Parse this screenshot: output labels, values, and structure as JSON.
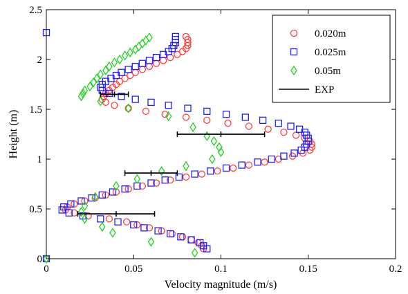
{
  "chart_data": {
    "type": "scatter",
    "title": "",
    "xlabel": "Velocity magnitude (m/s)",
    "ylabel": "Height (m)",
    "xlim": [
      0,
      0.2
    ],
    "ylim": [
      0,
      2.5
    ],
    "x_ticks": [
      "0",
      "0.05",
      "0.1",
      "0.15",
      "0.2"
    ],
    "y_ticks": [
      "0",
      "0.5",
      "1",
      "1.5",
      "2",
      "2.5"
    ],
    "grid": false,
    "legend_position": "top-right",
    "series": [
      {
        "name": "0.020m",
        "marker": "circle",
        "color": "#ff3b3b",
        "points": [
          [
            0.0,
            0.0
          ],
          [
            0.09,
            0.1
          ],
          [
            0.089,
            0.13
          ],
          [
            0.087,
            0.16
          ],
          [
            0.083,
            0.19
          ],
          [
            0.078,
            0.22
          ],
          [
            0.072,
            0.25
          ],
          [
            0.066,
            0.28
          ],
          [
            0.059,
            0.31
          ],
          [
            0.052,
            0.34
          ],
          [
            0.046,
            0.37
          ],
          [
            0.036,
            0.4
          ],
          [
            0.024,
            0.43
          ],
          [
            0.016,
            0.46
          ],
          [
            0.011,
            0.49
          ],
          [
            0.012,
            0.52
          ],
          [
            0.016,
            0.55
          ],
          [
            0.022,
            0.58
          ],
          [
            0.028,
            0.61
          ],
          [
            0.034,
            0.64
          ],
          [
            0.04,
            0.67
          ],
          [
            0.047,
            0.7
          ],
          [
            0.055,
            0.73
          ],
          [
            0.063,
            0.76
          ],
          [
            0.071,
            0.79
          ],
          [
            0.08,
            0.82
          ],
          [
            0.089,
            0.85
          ],
          [
            0.098,
            0.88
          ],
          [
            0.107,
            0.91
          ],
          [
            0.116,
            0.94
          ],
          [
            0.125,
            0.97
          ],
          [
            0.133,
            1.0
          ],
          [
            0.141,
            1.03
          ],
          [
            0.147,
            1.06
          ],
          [
            0.151,
            1.09
          ],
          [
            0.152,
            1.12
          ],
          [
            0.152,
            1.15
          ],
          [
            0.151,
            1.18
          ],
          [
            0.148,
            1.21
          ],
          [
            0.143,
            1.24
          ],
          [
            0.136,
            1.27
          ],
          [
            0.127,
            1.3
          ],
          [
            0.116,
            1.33
          ],
          [
            0.104,
            1.36
          ],
          [
            0.092,
            1.39
          ],
          [
            0.08,
            1.42
          ],
          [
            0.068,
            1.45
          ],
          [
            0.057,
            1.48
          ],
          [
            0.047,
            1.51
          ],
          [
            0.039,
            1.54
          ],
          [
            0.034,
            1.57
          ],
          [
            0.032,
            1.6
          ],
          [
            0.033,
            1.63
          ],
          [
            0.034,
            1.66
          ],
          [
            0.036,
            1.69
          ],
          [
            0.038,
            1.72
          ],
          [
            0.04,
            1.75
          ],
          [
            0.042,
            1.78
          ],
          [
            0.045,
            1.81
          ],
          [
            0.048,
            1.84
          ],
          [
            0.051,
            1.87
          ],
          [
            0.055,
            1.9
          ],
          [
            0.059,
            1.93
          ],
          [
            0.063,
            1.96
          ],
          [
            0.067,
            1.99
          ],
          [
            0.071,
            2.02
          ],
          [
            0.075,
            2.05
          ],
          [
            0.078,
            2.08
          ],
          [
            0.08,
            2.11
          ],
          [
            0.081,
            2.14
          ],
          [
            0.081,
            2.17
          ],
          [
            0.081,
            2.2
          ],
          [
            0.08,
            2.23
          ]
        ]
      },
      {
        "name": "0.025m",
        "marker": "square",
        "color": "#2020ff",
        "points": [
          [
            0.0,
            0.0
          ],
          [
            0.0,
            2.27
          ],
          [
            0.092,
            0.1
          ],
          [
            0.09,
            0.13
          ],
          [
            0.088,
            0.16
          ],
          [
            0.083,
            0.19
          ],
          [
            0.077,
            0.22
          ],
          [
            0.071,
            0.25
          ],
          [
            0.064,
            0.28
          ],
          [
            0.056,
            0.31
          ],
          [
            0.05,
            0.34
          ],
          [
            0.041,
            0.37
          ],
          [
            0.031,
            0.4
          ],
          [
            0.021,
            0.43
          ],
          [
            0.013,
            0.46
          ],
          [
            0.009,
            0.49
          ],
          [
            0.01,
            0.52
          ],
          [
            0.014,
            0.55
          ],
          [
            0.02,
            0.58
          ],
          [
            0.026,
            0.61
          ],
          [
            0.032,
            0.64
          ],
          [
            0.038,
            0.67
          ],
          [
            0.045,
            0.7
          ],
          [
            0.052,
            0.73
          ],
          [
            0.06,
            0.76
          ],
          [
            0.068,
            0.79
          ],
          [
            0.076,
            0.82
          ],
          [
            0.085,
            0.85
          ],
          [
            0.094,
            0.88
          ],
          [
            0.103,
            0.91
          ],
          [
            0.112,
            0.94
          ],
          [
            0.121,
            0.97
          ],
          [
            0.129,
            1.0
          ],
          [
            0.136,
            1.03
          ],
          [
            0.142,
            1.06
          ],
          [
            0.146,
            1.09
          ],
          [
            0.148,
            1.12
          ],
          [
            0.149,
            1.15
          ],
          [
            0.15,
            1.18
          ],
          [
            0.15,
            1.21
          ],
          [
            0.149,
            1.24
          ],
          [
            0.148,
            1.27
          ],
          [
            0.145,
            1.3
          ],
          [
            0.14,
            1.33
          ],
          [
            0.133,
            1.36
          ],
          [
            0.124,
            1.39
          ],
          [
            0.114,
            1.42
          ],
          [
            0.103,
            1.45
          ],
          [
            0.092,
            1.48
          ],
          [
            0.081,
            1.51
          ],
          [
            0.07,
            1.54
          ],
          [
            0.06,
            1.57
          ],
          [
            0.051,
            1.6
          ],
          [
            0.043,
            1.63
          ],
          [
            0.036,
            1.66
          ],
          [
            0.032,
            1.69
          ],
          [
            0.031,
            1.72
          ],
          [
            0.032,
            1.75
          ],
          [
            0.034,
            1.78
          ],
          [
            0.037,
            1.81
          ],
          [
            0.04,
            1.84
          ],
          [
            0.043,
            1.87
          ],
          [
            0.047,
            1.9
          ],
          [
            0.051,
            1.93
          ],
          [
            0.055,
            1.96
          ],
          [
            0.059,
            1.99
          ],
          [
            0.063,
            2.02
          ],
          [
            0.067,
            2.05
          ],
          [
            0.07,
            2.08
          ],
          [
            0.072,
            2.11
          ],
          [
            0.073,
            2.14
          ],
          [
            0.074,
            2.17
          ],
          [
            0.074,
            2.2
          ],
          [
            0.074,
            2.23
          ]
        ]
      },
      {
        "name": "0.05m",
        "marker": "diamond",
        "color": "#1dd11d",
        "points": [
          [
            0.0,
            0.0
          ],
          [
            0.085,
            0.06
          ],
          [
            0.06,
            0.17
          ],
          [
            0.038,
            0.26
          ],
          [
            0.032,
            0.32
          ],
          [
            0.022,
            0.4
          ],
          [
            0.02,
            0.47
          ],
          [
            0.022,
            0.53
          ],
          [
            0.028,
            0.62
          ],
          [
            0.04,
            0.73
          ],
          [
            0.052,
            0.8
          ],
          [
            0.066,
            0.88
          ],
          [
            0.08,
            0.93
          ],
          [
            0.095,
            1.0
          ],
          [
            0.1,
            1.07
          ],
          [
            0.099,
            1.12
          ],
          [
            0.096,
            1.18
          ],
          [
            0.092,
            1.23
          ],
          [
            0.084,
            1.32
          ],
          [
            0.07,
            1.43
          ],
          [
            0.047,
            1.51
          ],
          [
            0.031,
            1.58
          ],
          [
            0.02,
            1.63
          ],
          [
            0.021,
            1.66
          ],
          [
            0.022,
            1.69
          ],
          [
            0.025,
            1.73
          ],
          [
            0.027,
            1.77
          ],
          [
            0.029,
            1.81
          ],
          [
            0.031,
            1.85
          ],
          [
            0.034,
            1.89
          ],
          [
            0.036,
            1.93
          ],
          [
            0.039,
            1.97
          ],
          [
            0.042,
            2.0
          ],
          [
            0.045,
            2.04
          ],
          [
            0.048,
            2.07
          ],
          [
            0.051,
            2.1
          ],
          [
            0.053,
            2.13
          ],
          [
            0.055,
            2.16
          ],
          [
            0.057,
            2.19
          ],
          [
            0.059,
            2.22
          ]
        ]
      },
      {
        "name": "EXP",
        "marker": "errorbar",
        "color": "#000000",
        "points": [
          [
            0.04,
            0.45,
            0.022
          ],
          [
            0.06,
            0.86,
            0.015
          ],
          [
            0.1,
            1.25,
            0.025
          ],
          [
            0.039,
            1.65,
            0.008
          ]
        ]
      }
    ]
  }
}
